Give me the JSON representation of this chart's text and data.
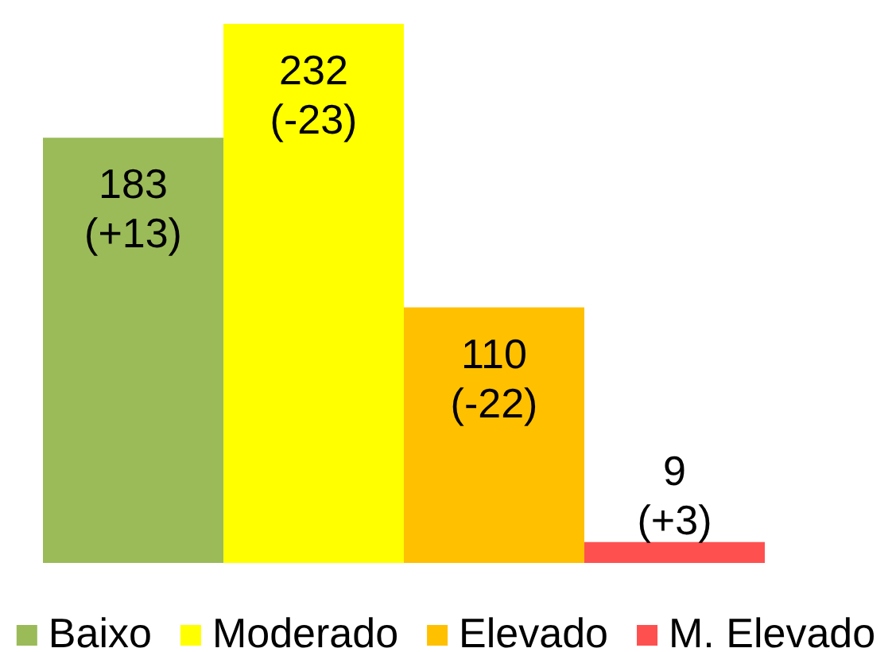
{
  "chart_data": {
    "type": "bar",
    "categories": [
      null
    ],
    "series": [
      {
        "name": "Baixo",
        "color": "#9bbb59",
        "values": [
          183
        ],
        "value_labels": [
          "183\n(+13)"
        ]
      },
      {
        "name": "Moderado",
        "color": "#ffff00",
        "values": [
          232
        ],
        "value_labels": [
          "232\n(-23)"
        ]
      },
      {
        "name": "Elevado",
        "color": "#ffc000",
        "values": [
          110
        ],
        "value_labels": [
          "110\n(-22)"
        ]
      },
      {
        "name": "M. Elevado",
        "color": "#ff5050",
        "values": [
          9
        ],
        "value_labels": [
          "9\n(+3)"
        ]
      }
    ],
    "legend": "bottom"
  }
}
